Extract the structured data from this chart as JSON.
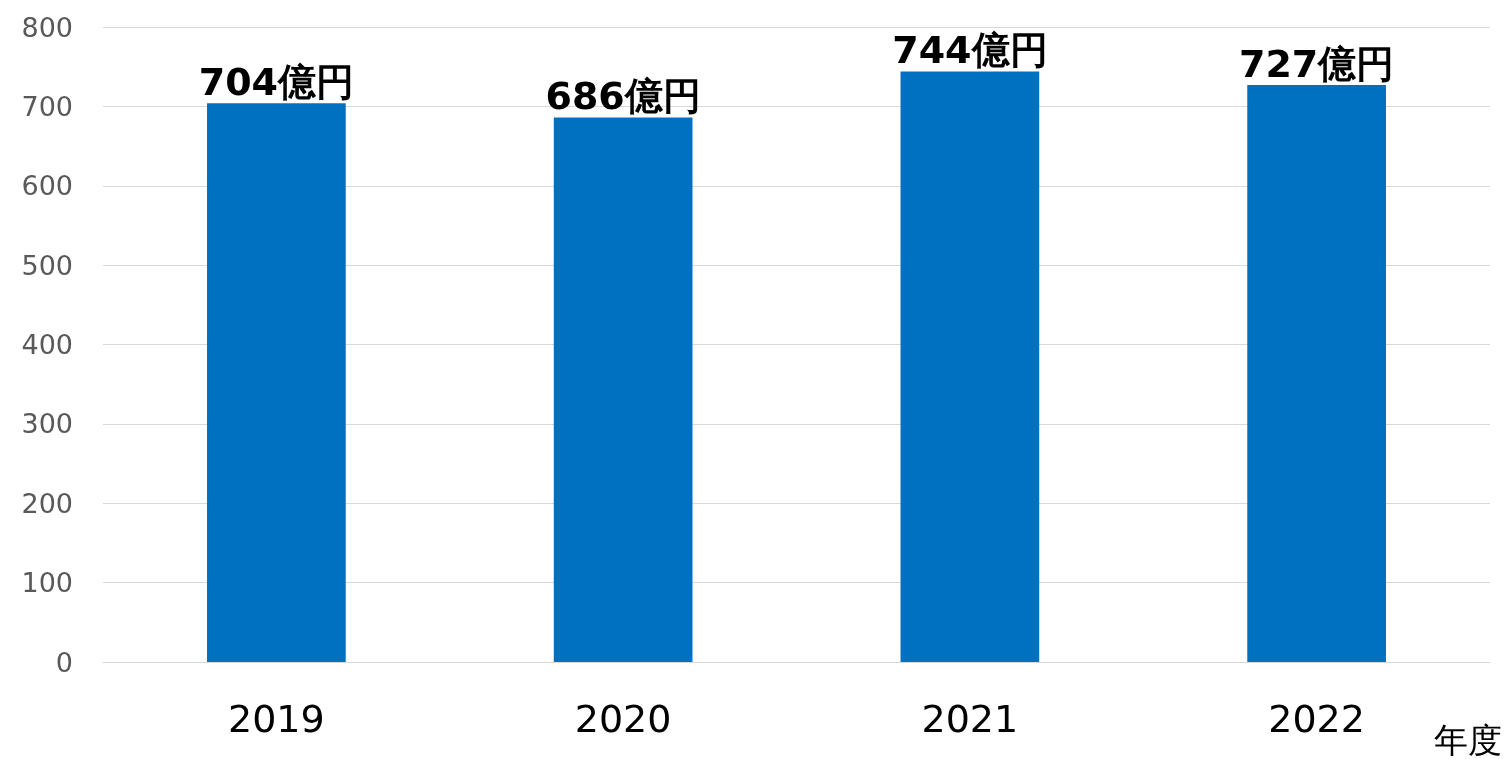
{
  "chart_data": {
    "type": "bar",
    "xlabel": "年度",
    "categories": [
      "2019",
      "2020",
      "2021",
      "2022"
    ],
    "values": [
      704,
      686,
      744,
      727
    ],
    "value_labels": [
      "704億円",
      "686億円",
      "744億円",
      "727億円"
    ],
    "color": "#0070c0",
    "ylim": [
      0,
      800
    ],
    "yticks": [
      0,
      100,
      200,
      300,
      400,
      500,
      600,
      700,
      800
    ],
    "grid": "y"
  }
}
